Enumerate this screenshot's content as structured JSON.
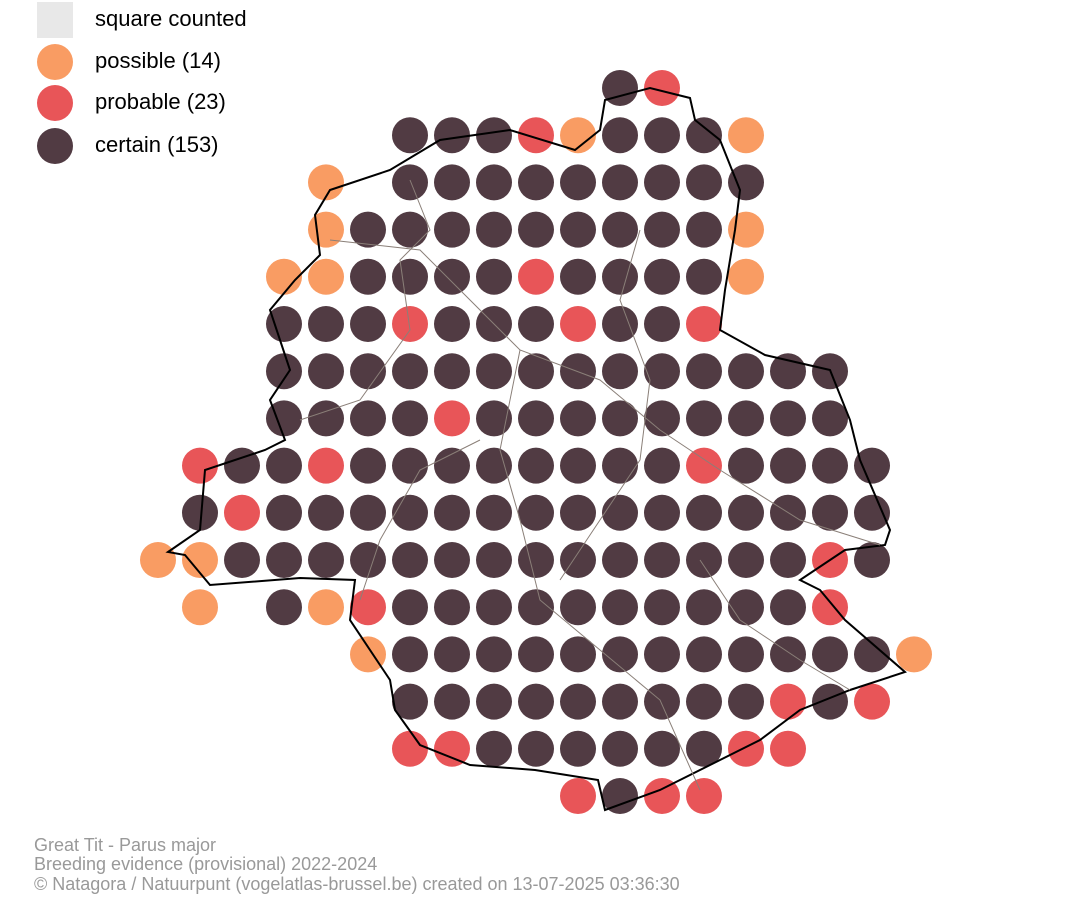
{
  "legend": {
    "items": [
      {
        "label": "square counted"
      },
      {
        "label": "possible (14)"
      },
      {
        "label": "probable (23)"
      },
      {
        "label": "certain (153)"
      }
    ]
  },
  "footer": {
    "lines": [
      "Great Tit - Parus major",
      "Breeding evidence (provisional) 2022-2024",
      "© Natagora / Natuurpunt (vogelatlas-brussel.be) created on 13-07-2025 03:36:30"
    ]
  }
}
